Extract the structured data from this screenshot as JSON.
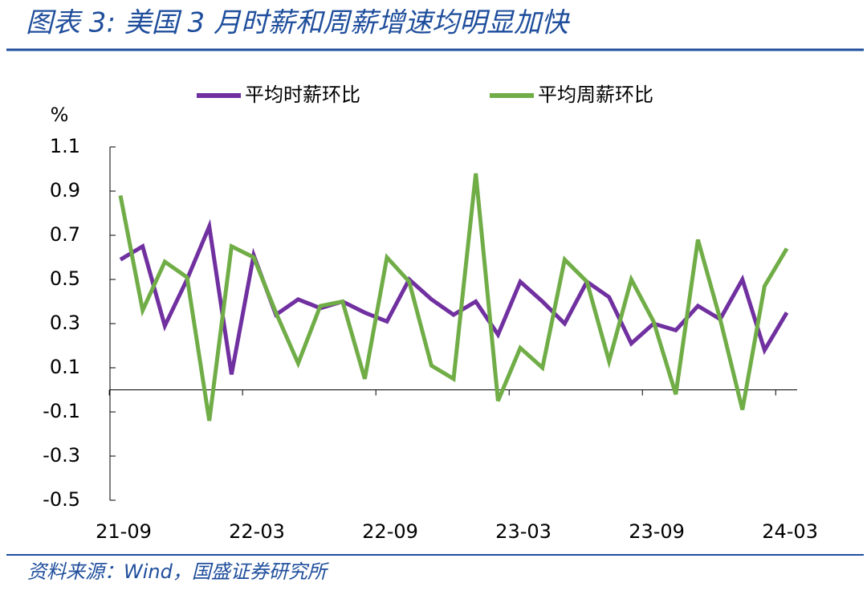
{
  "chart_data": {
    "type": "line",
    "title": "图表 3:  美国 3 月时薪和周薪增速均明显加快",
    "y_label": "%",
    "source": "资料来源：Wind，国盛证券研究所",
    "categories": [
      "21-09",
      null,
      null,
      null,
      null,
      null,
      "22-03",
      null,
      null,
      null,
      null,
      null,
      "22-09",
      null,
      null,
      null,
      null,
      null,
      "23-03",
      null,
      null,
      null,
      null,
      null,
      "23-09",
      null,
      null,
      null,
      null,
      null,
      "24-03"
    ],
    "series": [
      {
        "name": "平均时薪环比",
        "color": "#7030a0",
        "values": [
          0.59,
          0.65,
          0.29,
          0.5,
          0.74,
          0.07,
          0.61,
          0.34,
          0.41,
          0.37,
          0.4,
          0.35,
          0.31,
          0.5,
          0.41,
          0.34,
          0.4,
          0.25,
          0.49,
          0.4,
          0.3,
          0.49,
          0.42,
          0.21,
          0.3,
          0.27,
          0.38,
          0.32,
          0.5,
          0.18,
          0.35
        ]
      },
      {
        "name": "平均周薪环比",
        "color": "#70ad47",
        "values": [
          0.88,
          0.36,
          0.58,
          0.51,
          -0.14,
          0.65,
          0.6,
          0.35,
          0.12,
          0.38,
          0.4,
          0.05,
          0.6,
          0.49,
          0.11,
          0.05,
          0.98,
          -0.05,
          0.19,
          0.1,
          0.59,
          0.49,
          0.13,
          0.5,
          0.31,
          -0.02,
          0.68,
          0.32,
          -0.09,
          0.47,
          0.64
        ]
      }
    ],
    "ylim": [
      -0.5,
      1.1
    ],
    "yticks": [
      -0.5,
      -0.3,
      -0.1,
      0.1,
      0.3,
      0.5,
      0.7,
      0.9,
      1.1
    ],
    "legend": "top"
  }
}
